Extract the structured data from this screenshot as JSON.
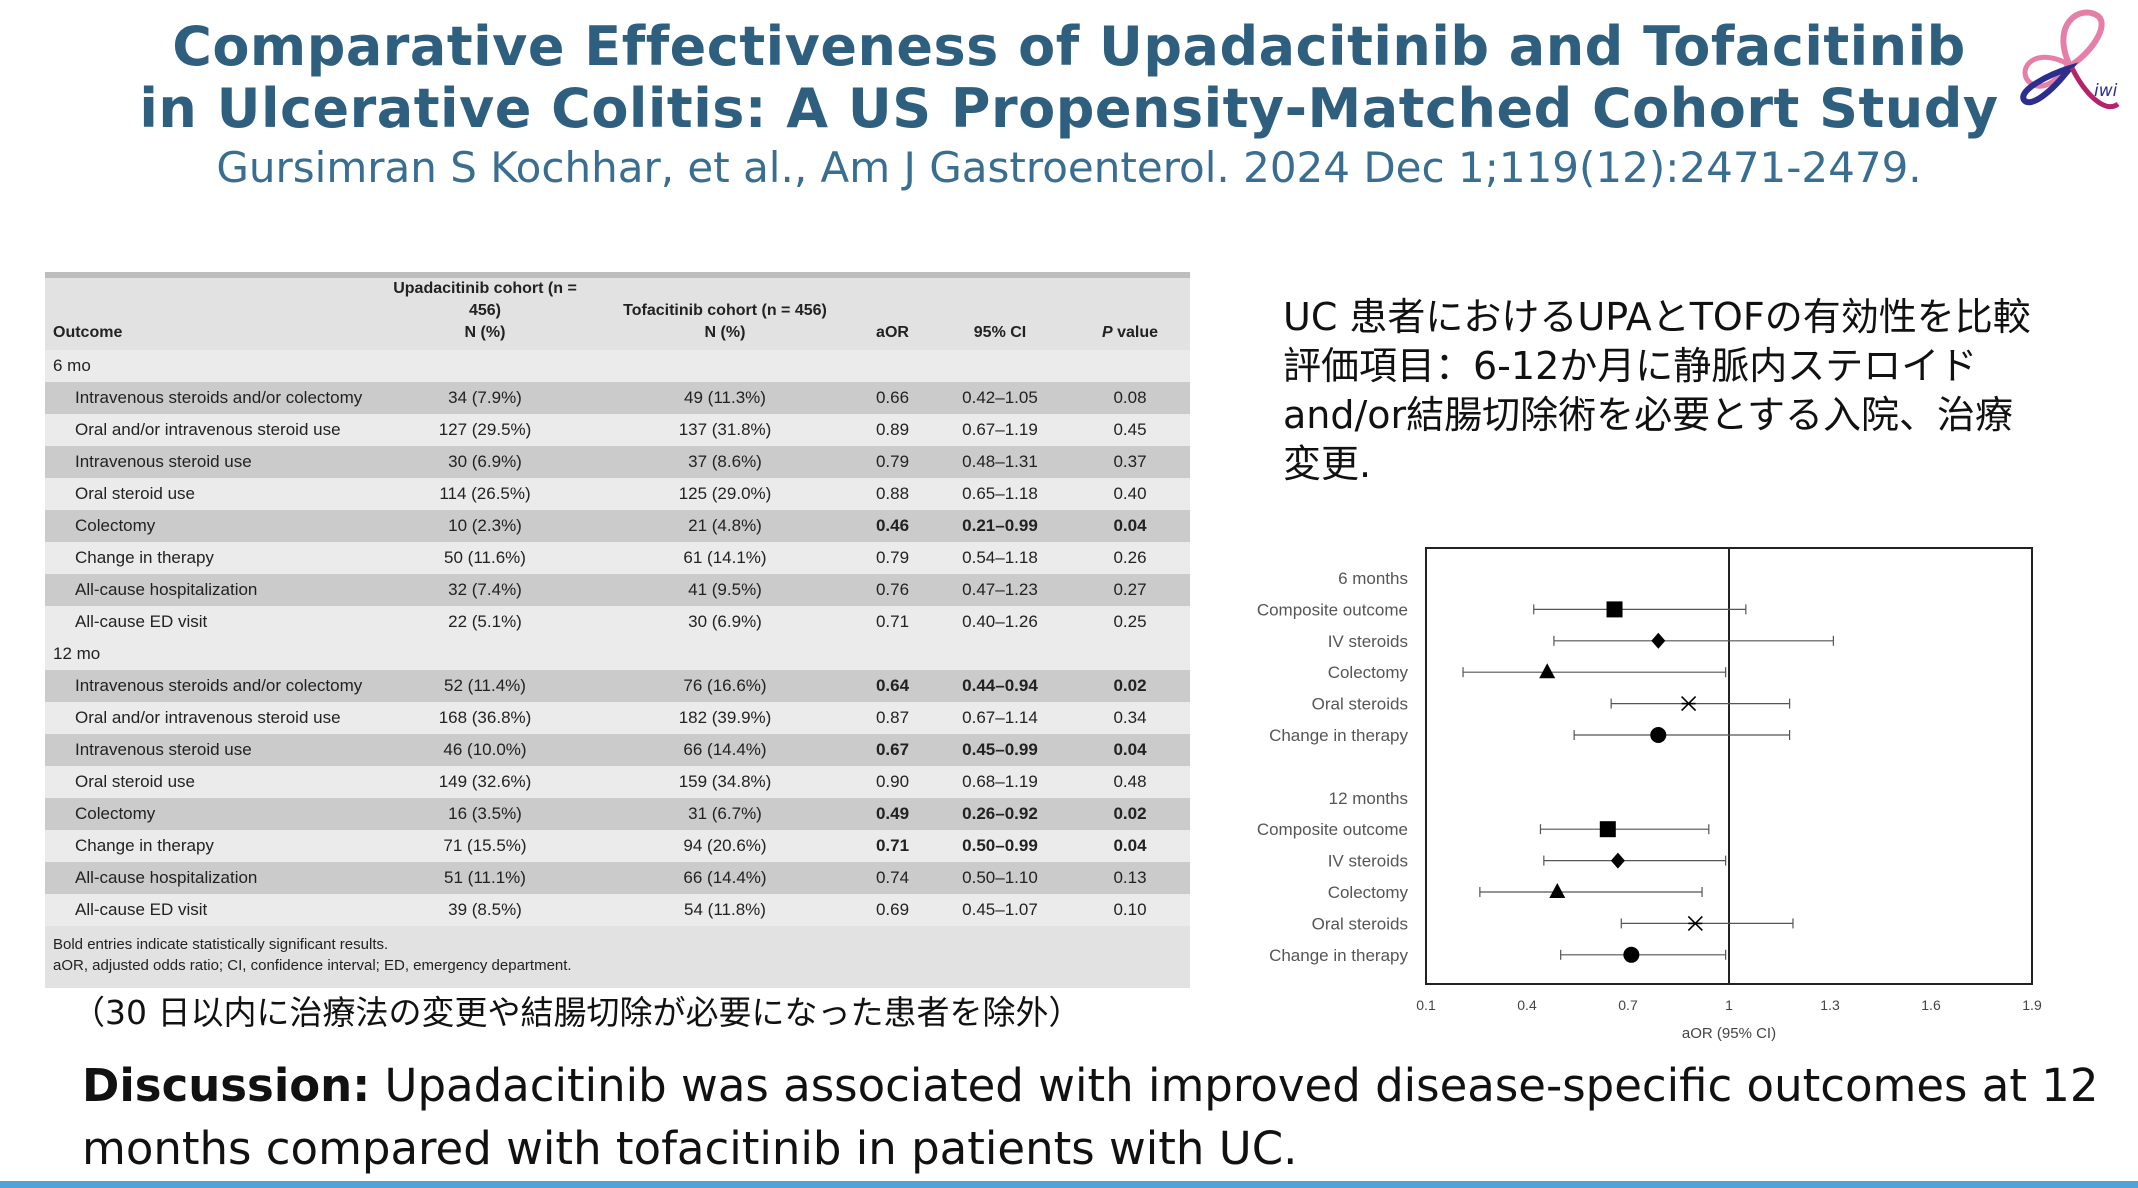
{
  "title": {
    "line1": "Comparative Effectiveness of Upadacitinib and Tofacitinib",
    "line2": "in Ulcerative Colitis: A US Propensity-Matched Cohort Study",
    "citation": "Gursimran S Kochhar, et al., Am J Gastroenterol. 2024 Dec 1;119(12):2471-2479."
  },
  "logo": {
    "text": "iwi",
    "colors": [
      "#e57fa8",
      "#2b2d8f",
      "#b5246a"
    ]
  },
  "table": {
    "headers": {
      "outcome": "Outcome",
      "upa_line1": "Upadacitinib cohort (n = 456)",
      "upa_line2": "N (%)",
      "tof_line1": "Tofacitinib cohort (n = 456)",
      "tof_line2": "N (%)",
      "aor": "aOR",
      "ci": "95% CI",
      "p_italic": "P",
      "p_rest": " value"
    },
    "sections": [
      {
        "label": "6 mo",
        "rows": [
          {
            "outcome": "Intravenous steroids and/or colectomy",
            "upa": "34 (7.9%)",
            "tof": "49 (11.3%)",
            "aor": "0.66",
            "ci": "0.42–1.05",
            "p": "0.08",
            "bold": false
          },
          {
            "outcome": "Oral and/or intravenous steroid use",
            "upa": "127 (29.5%)",
            "tof": "137 (31.8%)",
            "aor": "0.89",
            "ci": "0.67–1.19",
            "p": "0.45",
            "bold": false
          },
          {
            "outcome": "Intravenous steroid use",
            "upa": "30 (6.9%)",
            "tof": "37 (8.6%)",
            "aor": "0.79",
            "ci": "0.48–1.31",
            "p": "0.37",
            "bold": false
          },
          {
            "outcome": "Oral steroid use",
            "upa": "114 (26.5%)",
            "tof": "125 (29.0%)",
            "aor": "0.88",
            "ci": "0.65–1.18",
            "p": "0.40",
            "bold": false
          },
          {
            "outcome": "Colectomy",
            "upa": "10 (2.3%)",
            "tof": "21 (4.8%)",
            "aor": "0.46",
            "ci": "0.21–0.99",
            "p": "0.04",
            "bold": true
          },
          {
            "outcome": "Change in therapy",
            "upa": "50 (11.6%)",
            "tof": "61 (14.1%)",
            "aor": "0.79",
            "ci": "0.54–1.18",
            "p": "0.26",
            "bold": false
          },
          {
            "outcome": "All-cause hospitalization",
            "upa": "32 (7.4%)",
            "tof": "41 (9.5%)",
            "aor": "0.76",
            "ci": "0.47–1.23",
            "p": "0.27",
            "bold": false
          },
          {
            "outcome": "All-cause ED visit",
            "upa": "22 (5.1%)",
            "tof": "30 (6.9%)",
            "aor": "0.71",
            "ci": "0.40–1.26",
            "p": "0.25",
            "bold": false
          }
        ]
      },
      {
        "label": "12 mo",
        "rows": [
          {
            "outcome": "Intravenous steroids and/or colectomy",
            "upa": "52 (11.4%)",
            "tof": "76 (16.6%)",
            "aor": "0.64",
            "ci": "0.44–0.94",
            "p": "0.02",
            "bold": true
          },
          {
            "outcome": "Oral and/or intravenous steroid use",
            "upa": "168 (36.8%)",
            "tof": "182 (39.9%)",
            "aor": "0.87",
            "ci": "0.67–1.14",
            "p": "0.34",
            "bold": false
          },
          {
            "outcome": "Intravenous steroid use",
            "upa": "46 (10.0%)",
            "tof": "66 (14.4%)",
            "aor": "0.67",
            "ci": "0.45–0.99",
            "p": "0.04",
            "bold": true
          },
          {
            "outcome": "Oral steroid use",
            "upa": "149 (32.6%)",
            "tof": "159 (34.8%)",
            "aor": "0.90",
            "ci": "0.68–1.19",
            "p": "0.48",
            "bold": false
          },
          {
            "outcome": "Colectomy",
            "upa": "16 (3.5%)",
            "tof": "31 (6.7%)",
            "aor": "0.49",
            "ci": "0.26–0.92",
            "p": "0.02",
            "bold": true
          },
          {
            "outcome": "Change in therapy",
            "upa": "71 (15.5%)",
            "tof": "94 (20.6%)",
            "aor": "0.71",
            "ci": "0.50–0.99",
            "p": "0.04",
            "bold": true
          },
          {
            "outcome": "All-cause hospitalization",
            "upa": "51 (11.1%)",
            "tof": "66 (14.4%)",
            "aor": "0.74",
            "ci": "0.50–1.10",
            "p": "0.13",
            "bold": false
          },
          {
            "outcome": "All-cause ED visit",
            "upa": "39 (8.5%)",
            "tof": "54 (11.8%)",
            "aor": "0.69",
            "ci": "0.45–1.07",
            "p": "0.10",
            "bold": false
          }
        ]
      }
    ],
    "notes": [
      "Bold entries indicate statistically significant results.",
      "aOR, adjusted odds ratio; CI, confidence interval; ED, emergency department."
    ]
  },
  "note_jp": "（30 日以内に治療法の変更や結腸切除が必要になった患者を除外）",
  "summary_jp": [
    "UC 患者におけるUPAとTOFの有効性を比較",
    "評価項目：6-12か月に静脈内ステロイド",
    "and/or結腸切除術を必要とする入院、治療",
    "変更."
  ],
  "chart_data": {
    "type": "scatter",
    "subtype": "forest-plot",
    "xlabel": "aOR (95% CI)",
    "xlim": [
      0.1,
      1.9
    ],
    "xticks": [
      "0.1",
      "0.4",
      "0.7",
      "1",
      "1.3",
      "1.6",
      "1.9"
    ],
    "reference_line": 1,
    "groups": [
      {
        "label": "6 months",
        "rows": [
          {
            "label": "Composite outcome",
            "aor": 0.66,
            "lo": 0.42,
            "hi": 1.05,
            "marker": "square"
          },
          {
            "label": "IV steroids",
            "aor": 0.79,
            "lo": 0.48,
            "hi": 1.31,
            "marker": "diamond"
          },
          {
            "label": "Colectomy",
            "aor": 0.46,
            "lo": 0.21,
            "hi": 0.99,
            "marker": "triangle"
          },
          {
            "label": "Oral steroids",
            "aor": 0.88,
            "lo": 0.65,
            "hi": 1.18,
            "marker": "star"
          },
          {
            "label": "Change in therapy",
            "aor": 0.79,
            "lo": 0.54,
            "hi": 1.18,
            "marker": "circle"
          }
        ]
      },
      {
        "label": "12 months",
        "rows": [
          {
            "label": "Composite outcome",
            "aor": 0.64,
            "lo": 0.44,
            "hi": 0.94,
            "marker": "square"
          },
          {
            "label": "IV steroids",
            "aor": 0.67,
            "lo": 0.45,
            "hi": 0.99,
            "marker": "diamond"
          },
          {
            "label": "Colectomy",
            "aor": 0.49,
            "lo": 0.26,
            "hi": 0.92,
            "marker": "triangle"
          },
          {
            "label": "Oral steroids",
            "aor": 0.9,
            "lo": 0.68,
            "hi": 1.19,
            "marker": "star"
          },
          {
            "label": "Change in therapy",
            "aor": 0.71,
            "lo": 0.5,
            "hi": 0.99,
            "marker": "circle"
          }
        ]
      }
    ]
  },
  "discussion": {
    "label": "Discussion:",
    "text": " Upadacitinib was associated with improved disease-specific outcomes at 12 months compared with tofacitinib in patients with UC."
  },
  "accent_color": "#4fa3d6"
}
